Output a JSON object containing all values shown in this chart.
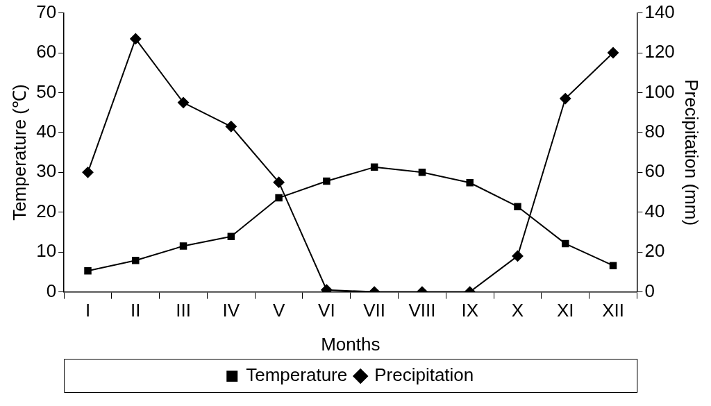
{
  "chart_data": {
    "type": "line",
    "xlabel": "Months",
    "ylabel": "Temperature (℃)",
    "y2label": "Precipitation (mm)",
    "categories": [
      "I",
      "II",
      "III",
      "IV",
      "V",
      "VI",
      "VII",
      "VIII",
      "IX",
      "X",
      "XI",
      "XII"
    ],
    "series": [
      {
        "name": "Temperature",
        "color": "#000000",
        "marker": "square",
        "values": [
          5.3,
          7.9,
          11.5,
          13.9,
          23.6,
          27.8,
          31.3,
          30.0,
          27.4,
          21.4,
          12.1,
          6.6
        ]
      },
      {
        "name": "Precipitation",
        "color": "#000000",
        "marker": "diamond",
        "axis": "y2",
        "values": [
          60,
          127,
          95,
          83,
          55,
          1,
          0,
          0,
          0,
          18,
          97,
          120
        ]
      }
    ],
    "ylim": [
      0,
      70
    ],
    "yticks": [
      0,
      10,
      20,
      30,
      40,
      50,
      60,
      70
    ],
    "y2lim": [
      0,
      140
    ],
    "y2ticks": [
      0,
      20,
      40,
      60,
      80,
      100,
      120,
      140
    ],
    "grid": false,
    "legend": "bottom",
    "line_style": "solid"
  }
}
